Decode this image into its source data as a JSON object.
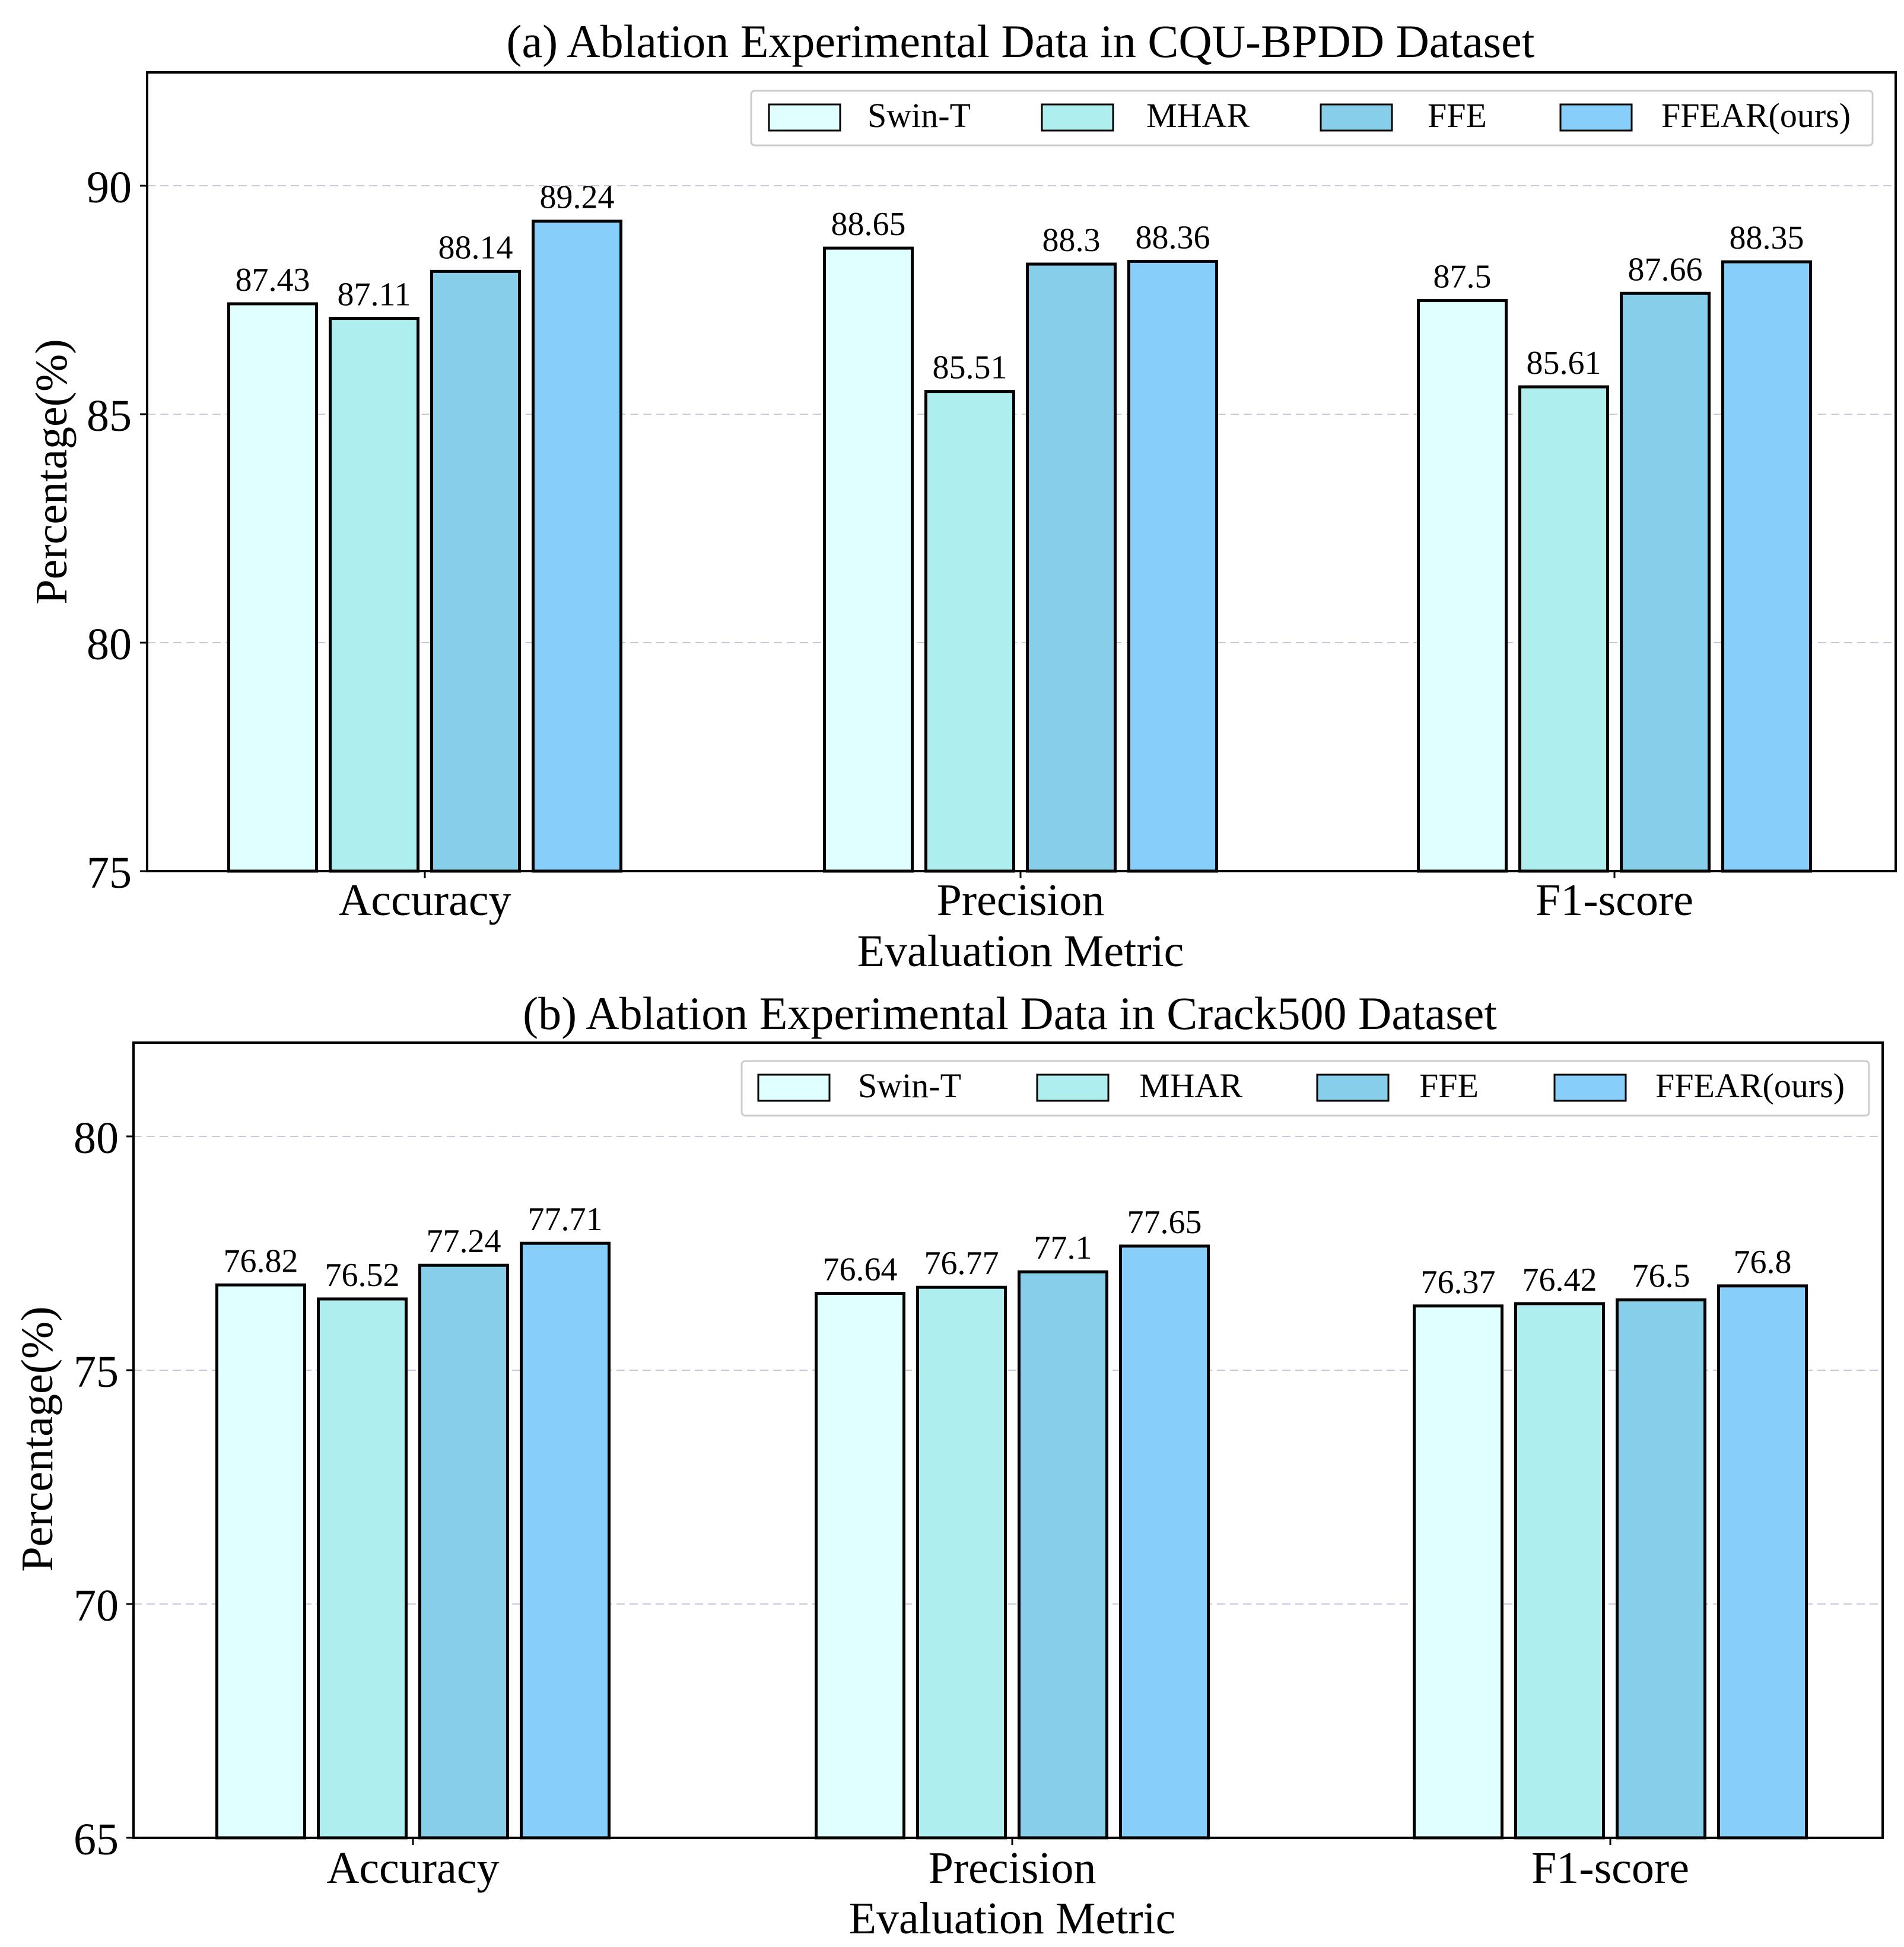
{
  "figure": {
    "colors": {
      "Swin-T": "#e0ffff",
      "MHAR": "#afeeee",
      "FFE": "#87ceeb",
      "FFEAR(ours)": "#87cefa",
      "edge": "#000000",
      "grid": "#c9c9de"
    }
  },
  "chart_data": [
    {
      "type": "bar",
      "title": "(a) Ablation Experimental Data in CQU-BPDD Dataset",
      "xlabel": "Evaluation Metric",
      "ylabel": "Percentage(%)",
      "ylim": [
        75,
        92.5
      ],
      "yticks": [
        75,
        80,
        85,
        90
      ],
      "grid": true,
      "legend_position": "top-right",
      "categories": [
        "Accuracy",
        "Precision",
        "F1-score"
      ],
      "series": [
        {
          "name": "Swin-T",
          "values": [
            87.43,
            88.65,
            87.5
          ]
        },
        {
          "name": "MHAR",
          "values": [
            87.11,
            85.51,
            85.61
          ]
        },
        {
          "name": "FFE",
          "values": [
            88.14,
            88.3,
            87.66
          ]
        },
        {
          "name": "FFEAR(ours)",
          "values": [
            89.24,
            88.36,
            88.35
          ]
        }
      ]
    },
    {
      "type": "bar",
      "title": "(b) Ablation Experimental Data in Crack500 Dataset",
      "xlabel": "Evaluation Metric",
      "ylabel": "Percentage(%)",
      "ylim": [
        65,
        82
      ],
      "yticks": [
        65,
        70,
        75,
        80
      ],
      "grid": true,
      "legend_position": "top-right",
      "categories": [
        "Accuracy",
        "Precision",
        "F1-score"
      ],
      "series": [
        {
          "name": "Swin-T",
          "values": [
            76.82,
            76.64,
            76.37
          ]
        },
        {
          "name": "MHAR",
          "values": [
            76.52,
            76.77,
            76.42
          ]
        },
        {
          "name": "FFE",
          "values": [
            77.24,
            77.1,
            76.5
          ]
        },
        {
          "name": "FFEAR(ours)",
          "values": [
            77.71,
            77.65,
            76.8
          ]
        }
      ]
    }
  ]
}
